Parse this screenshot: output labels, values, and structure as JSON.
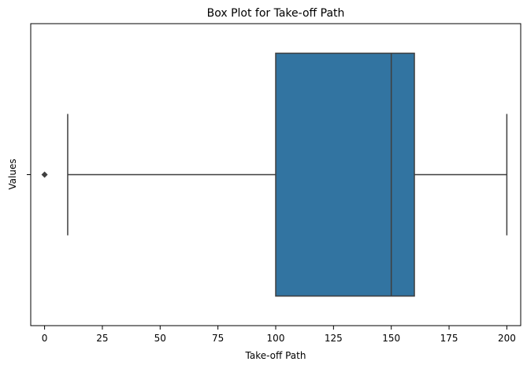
{
  "chart_data": {
    "type": "box",
    "orientation": "horizontal",
    "title": "Box Plot for Take-off Path",
    "xlabel": "Take-off Path",
    "ylabel": "Values",
    "xlim": [
      -6,
      206
    ],
    "xticks": [
      0,
      25,
      50,
      75,
      100,
      125,
      150,
      175,
      200
    ],
    "xtick_labels": [
      "0",
      "25",
      "50",
      "75",
      "100",
      "125",
      "150",
      "175",
      "200"
    ],
    "ytick_labels": [
      ""
    ],
    "grid": false,
    "box": {
      "whisker_low": 10,
      "q1": 100,
      "median": 150,
      "q3": 160,
      "whisker_high": 200,
      "outliers": [
        0
      ],
      "color": "#3274a1",
      "line_color": "#3f3f3f"
    }
  }
}
